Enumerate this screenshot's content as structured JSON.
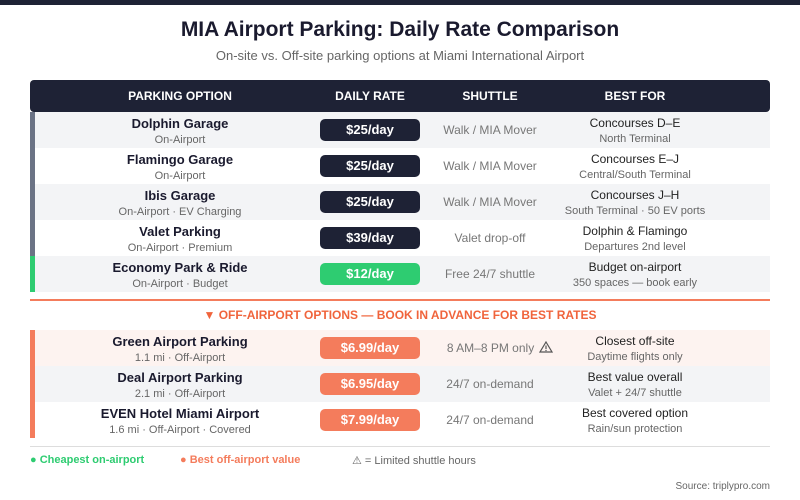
{
  "header": {
    "title": "MIA Airport Parking: Daily Rate Comparison",
    "subtitle": "On-site vs. Off-site parking options at Miami International Airport"
  },
  "table": {
    "columns": [
      "PARKING OPTION",
      "DAILY RATE",
      "SHUTTLE",
      "BEST FOR"
    ],
    "rows": [
      {
        "name": "Dolphin Garage",
        "detail": "On-Airport",
        "rate": "$25/day",
        "shuttle": "Walk / MIA Mover",
        "best": "Concourses D–E",
        "best_detail": "North Terminal",
        "color": "#1e2235",
        "accent": "#6b7385"
      },
      {
        "name": "Flamingo Garage",
        "detail": "On-Airport",
        "rate": "$25/day",
        "shuttle": "Walk / MIA Mover",
        "best": "Concourses E–J",
        "best_detail": "Central/South Terminal",
        "color": "#1e2235",
        "accent": "#6b7385"
      },
      {
        "name": "Ibis Garage",
        "detail": "On-Airport · EV Charging",
        "rate": "$25/day",
        "shuttle": "Walk / MIA Mover",
        "best": "Concourses J–H",
        "best_detail": "South Terminal · 50 EV ports",
        "color": "#1e2235",
        "accent": "#6b7385"
      },
      {
        "name": "Valet Parking",
        "detail": "On-Airport · Premium",
        "rate": "$39/day",
        "shuttle": "Valet drop-off",
        "best": "Dolphin & Flamingo",
        "best_detail": "Departures 2nd level",
        "color": "#1e2235",
        "accent": "#6b7385"
      },
      {
        "name": "Economy Park & Ride",
        "detail": "On-Airport · Budget",
        "rate": "$12/day",
        "shuttle": "Free 24/7 shuttle",
        "best": "Budget on-airport",
        "best_detail": "350 spaces — book early",
        "color": "#2ecc71",
        "accent": "#2ecc71"
      }
    ],
    "section": "▼ OFF-AIRPORT OPTIONS — BOOK IN ADVANCE FOR BEST RATES",
    "off_rows": [
      {
        "name": "Green Airport Parking",
        "detail": "1.1 mi · Off-Airport",
        "rate": "$6.99/day",
        "shuttle": "8 AM–8 PM only",
        "limited": true,
        "best": "Closest off-site",
        "best_detail": "Daytime flights only",
        "color": "#f47c5c",
        "accent": "#f47c5c"
      },
      {
        "name": "Deal Airport Parking",
        "detail": "2.1 mi · Off-Airport",
        "rate": "$6.95/day",
        "shuttle": "24/7 on-demand",
        "best": "Best value overall",
        "best_detail": "Valet + 24/7 shuttle",
        "color": "#f47c5c",
        "accent": "#f47c5c"
      },
      {
        "name": "EVEN Hotel Miami Airport",
        "detail": "1.6 mi · Off-Airport · Covered",
        "rate": "$7.99/day",
        "shuttle": "24/7 on-demand",
        "best": "Best covered option",
        "best_detail": "Rain/sun protection",
        "color": "#f47c5c",
        "accent": "#f47c5c"
      }
    ]
  },
  "legend": [
    "● Cheapest on-airport",
    "● Best off-airport value",
    "⚠ = Limited shuttle hours"
  ],
  "source": "Source: triplypro.com"
}
